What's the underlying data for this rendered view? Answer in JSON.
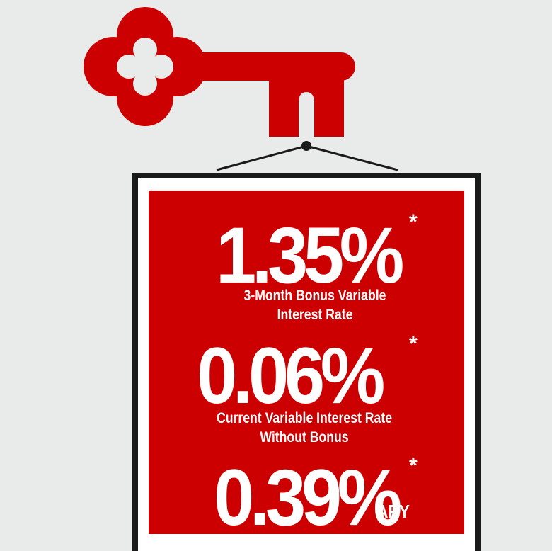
{
  "brand": {
    "accent_color": "#cc0000",
    "icon": "key-icon"
  },
  "rates": [
    {
      "value": "1.35%",
      "marker": "*",
      "caption_line1": "3-Month Bonus Variable",
      "caption_line2": "Interest Rate"
    },
    {
      "value": "0.06%",
      "marker": "*",
      "caption_line1": "Current Variable Interest Rate",
      "caption_line2": "Without Bonus"
    },
    {
      "value": "0.39%",
      "marker": "*",
      "suffix": "APY"
    }
  ]
}
